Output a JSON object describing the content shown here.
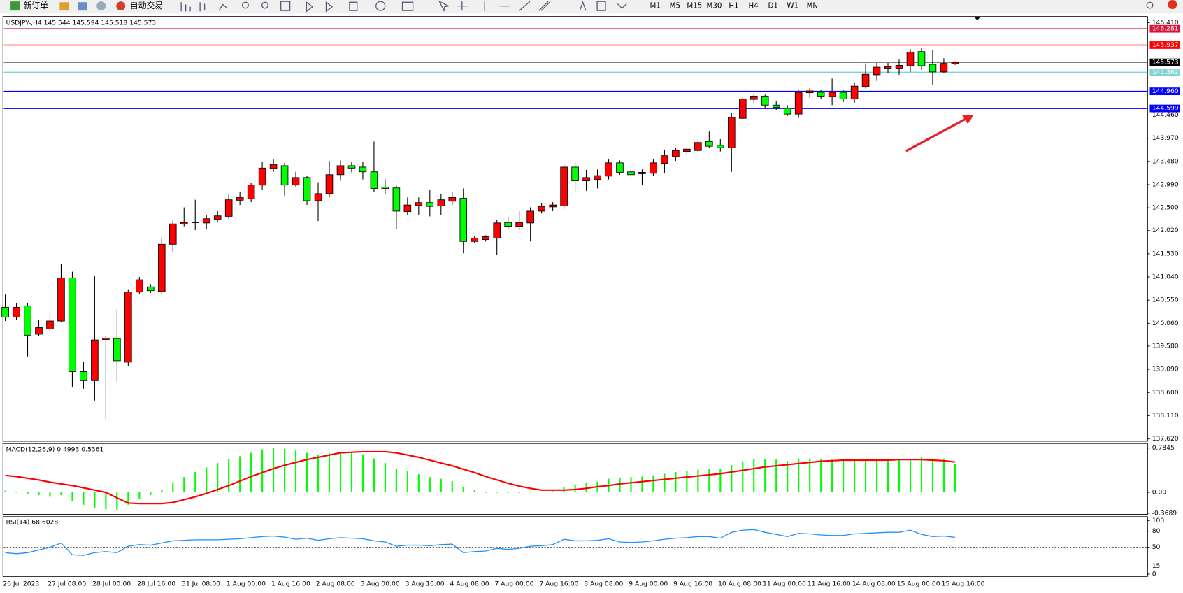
{
  "toolbar": {
    "new_order": "新订单",
    "auto_trading": "自动交易",
    "timeframes": [
      "M1",
      "M5",
      "M15",
      "M30",
      "H1",
      "H4",
      "D1",
      "W1",
      "MN"
    ]
  },
  "chart_data": [
    {
      "type": "candlestick",
      "symbol": "USDJPY-,H4",
      "up_color": "#ff0000",
      "down_color": "#00ff00",
      "categories": [
        "26 Jul 2023",
        null,
        null,
        null,
        "27 Jul 08:00",
        null,
        null,
        null,
        "28 Jul 00:00",
        null,
        null,
        null,
        "28 Jul 16:00",
        null,
        null,
        null,
        "31 Jul 08:00",
        null,
        null,
        null,
        "1 Aug 00:00",
        null,
        null,
        null,
        "1 Aug 16:00",
        null,
        null,
        null,
        "2 Aug 08:00",
        null,
        null,
        null,
        "3 Aug 00:00",
        null,
        null,
        null,
        "3 Aug 16:00",
        null,
        null,
        null,
        "4 Aug 08:00",
        null,
        null,
        null,
        "7 Aug 00:00",
        null,
        null,
        null,
        "7 Aug 16:00",
        null,
        null,
        null,
        "8 Aug 08:00",
        null,
        null,
        null,
        "9 Aug 00:00",
        null,
        null,
        null,
        "9 Aug 16:00",
        null,
        null,
        null,
        "10 Aug 08:00",
        null,
        null,
        null,
        "11 Aug 00:00",
        null,
        null,
        null,
        "11 Aug 16:00",
        null,
        null,
        null,
        "14 Aug 08:00",
        null,
        null,
        null,
        "15 Aug 00:00",
        null,
        null,
        null,
        "15 Aug 16:00",
        null
      ],
      "open": [
        140.4,
        140.19,
        140.43,
        139.83,
        139.94,
        140.11,
        141.02,
        139.04,
        138.85,
        139.72,
        139.74,
        139.24,
        140.72,
        140.83,
        140.73,
        141.73,
        142.16,
        142.19,
        142.18,
        142.26,
        142.32,
        142.66,
        142.69,
        142.98,
        143.33,
        143.39,
        142.98,
        143.14,
        142.65,
        142.8,
        143.2,
        143.39,
        143.36,
        143.26,
        142.94,
        142.92,
        142.42,
        142.55,
        142.61,
        142.54,
        142.64,
        142.7,
        141.79,
        141.83,
        141.86,
        142.19,
        142.11,
        142.18,
        142.43,
        142.52,
        142.54,
        143.36,
        143.07,
        143.1,
        143.17,
        143.45,
        143.26,
        143.22,
        143.23,
        143.44,
        143.58,
        143.69,
        143.71,
        143.9,
        143.82,
        143.77,
        144.39,
        144.79,
        144.86,
        144.67,
        144.6,
        144.48,
        144.93,
        144.94,
        144.85,
        144.94,
        144.8,
        145.06,
        145.31,
        145.45,
        145.45,
        145.5,
        145.8,
        145.53,
        145.37,
        145.544
      ],
      "high": [
        140.67,
        140.48,
        140.48,
        140.14,
        140.32,
        141.31,
        141.15,
        139.24,
        141.07,
        139.79,
        140.35,
        140.78,
        141.04,
        140.89,
        141.87,
        142.24,
        142.51,
        142.67,
        142.35,
        142.43,
        142.78,
        142.83,
        143.02,
        143.47,
        143.52,
        143.45,
        143.26,
        143.17,
        143.04,
        143.49,
        143.5,
        143.47,
        143.47,
        143.9,
        143.1,
        142.97,
        142.72,
        142.72,
        142.88,
        142.8,
        142.83,
        142.91,
        141.9,
        141.92,
        142.24,
        142.3,
        142.43,
        142.51,
        142.59,
        142.62,
        143.42,
        143.47,
        143.3,
        143.31,
        143.52,
        143.5,
        143.34,
        143.31,
        143.52,
        143.73,
        143.76,
        143.77,
        143.93,
        144.11,
        143.95,
        144.51,
        144.83,
        144.89,
        144.89,
        144.75,
        144.67,
        144.99,
        145.02,
        144.99,
        145.23,
        144.99,
        145.15,
        145.55,
        145.56,
        145.56,
        145.63,
        145.85,
        145.88,
        145.83,
        145.66,
        145.594
      ],
      "low": [
        140.11,
        140.14,
        139.36,
        139.79,
        139.87,
        140.08,
        138.72,
        138.68,
        138.43,
        138.04,
        138.83,
        139.15,
        140.67,
        140.7,
        140.67,
        141.57,
        142.11,
        142.03,
        142.06,
        142.21,
        142.27,
        142.56,
        142.62,
        142.88,
        143.26,
        142.75,
        142.94,
        142.56,
        142.22,
        142.72,
        143.07,
        143.25,
        143.1,
        142.83,
        142.78,
        142.06,
        142.35,
        142.35,
        142.32,
        142.35,
        142.56,
        141.54,
        141.76,
        141.79,
        141.51,
        142.06,
        142.03,
        141.79,
        142.38,
        142.43,
        142.46,
        142.85,
        142.86,
        142.91,
        143.1,
        143.2,
        143.1,
        142.99,
        143.18,
        143.23,
        143.49,
        143.63,
        143.68,
        143.76,
        143.69,
        143.26,
        144.38,
        144.72,
        144.6,
        144.57,
        144.44,
        144.4,
        144.83,
        144.8,
        144.67,
        144.73,
        144.72,
        145.02,
        145.18,
        145.35,
        145.31,
        145.37,
        145.42,
        145.1,
        145.35,
        145.518
      ],
      "close": [
        140.19,
        140.4,
        139.81,
        139.97,
        140.11,
        141.02,
        139.04,
        138.85,
        139.71,
        139.75,
        139.27,
        140.72,
        140.98,
        140.75,
        141.73,
        142.16,
        142.19,
        142.2,
        142.27,
        142.33,
        142.67,
        142.72,
        142.98,
        143.34,
        143.41,
        142.98,
        143.14,
        142.65,
        142.8,
        143.2,
        143.39,
        143.34,
        143.26,
        142.91,
        142.91,
        142.43,
        142.56,
        142.61,
        142.53,
        142.67,
        142.72,
        141.79,
        141.86,
        141.89,
        142.18,
        142.11,
        142.19,
        142.43,
        142.53,
        142.56,
        143.36,
        143.07,
        143.14,
        143.18,
        143.45,
        143.25,
        143.2,
        143.25,
        143.45,
        143.6,
        143.71,
        143.74,
        143.88,
        143.8,
        143.77,
        144.41,
        144.8,
        144.86,
        144.67,
        144.62,
        144.48,
        144.94,
        144.97,
        144.86,
        144.94,
        144.8,
        145.07,
        145.32,
        145.47,
        145.48,
        145.51,
        145.79,
        145.5,
        145.37,
        145.55,
        145.573
      ],
      "ylim": [
        137.572,
        146.538
      ],
      "yticks": [
        {
          "value": 146.41,
          "label": "146.410"
        },
        {
          "value": 144.46,
          "label": "144.460"
        },
        {
          "value": 143.97,
          "label": "143.970"
        },
        {
          "value": 143.48,
          "label": "143.480"
        },
        {
          "value": 142.99,
          "label": "142.990"
        },
        {
          "value": 142.5,
          "label": "142.500"
        },
        {
          "value": 142.02,
          "label": "142.020"
        },
        {
          "value": 141.53,
          "label": "141.530"
        },
        {
          "value": 141.04,
          "label": "141.040"
        },
        {
          "value": 140.55,
          "label": "140.550"
        },
        {
          "value": 140.06,
          "label": "140.060"
        },
        {
          "value": 139.58,
          "label": "139.580"
        },
        {
          "value": 139.09,
          "label": "139.090"
        },
        {
          "value": 138.6,
          "label": "138.600"
        },
        {
          "value": 138.11,
          "label": "138.110"
        },
        {
          "value": 137.62,
          "label": "137.620"
        }
      ],
      "levels": [
        {
          "value": 146.281,
          "color": "#dc143c"
        },
        {
          "value": 145.937,
          "color": "#ff0000"
        },
        {
          "value": 145.362,
          "color": "#7fd4d4"
        },
        {
          "value": 144.96,
          "label": "144.960",
          "color": "#0000ff"
        },
        {
          "value": 144.599,
          "color": "#0000ff"
        }
      ],
      "bid_color": "#000000"
    },
    {
      "type": "macd",
      "title": "MACD(12,26,9)",
      "color": "#00ff00",
      "signal_color": "#ff0000",
      "values": [
        0.03,
        0.0,
        -0.03,
        -0.05,
        -0.08,
        -0.05,
        -0.15,
        -0.22,
        -0.27,
        -0.3,
        -0.32,
        -0.22,
        -0.12,
        -0.05,
        0.05,
        0.18,
        0.27,
        0.36,
        0.44,
        0.52,
        0.59,
        0.64,
        0.7,
        0.76,
        0.78,
        0.77,
        0.74,
        0.7,
        0.67,
        0.69,
        0.71,
        0.7,
        0.67,
        0.6,
        0.52,
        0.42,
        0.37,
        0.32,
        0.27,
        0.24,
        0.2,
        0.1,
        0.04,
        0.0,
        0.0,
        -0.01,
        -0.01,
        0.0,
        0.01,
        0.02,
        0.1,
        0.14,
        0.17,
        0.19,
        0.24,
        0.26,
        0.27,
        0.28,
        0.3,
        0.33,
        0.36,
        0.38,
        0.4,
        0.42,
        0.42,
        0.48,
        0.55,
        0.59,
        0.59,
        0.58,
        0.55,
        0.59,
        0.59,
        0.58,
        0.58,
        0.56,
        0.57,
        0.58,
        0.58,
        0.58,
        0.58,
        0.59,
        0.62,
        0.6,
        0.59,
        0.4993
      ],
      "signal": [
        0.3,
        0.28,
        0.25,
        0.22,
        0.18,
        0.15,
        0.12,
        0.08,
        0.04,
        0.0,
        -0.1,
        -0.19,
        -0.2,
        -0.2,
        -0.2,
        -0.18,
        -0.13,
        -0.08,
        -0.02,
        0.05,
        0.12,
        0.2,
        0.28,
        0.35,
        0.42,
        0.48,
        0.53,
        0.58,
        0.62,
        0.66,
        0.7,
        0.71,
        0.72,
        0.72,
        0.72,
        0.7,
        0.66,
        0.62,
        0.57,
        0.52,
        0.47,
        0.41,
        0.35,
        0.28,
        0.22,
        0.16,
        0.11,
        0.07,
        0.04,
        0.04,
        0.04,
        0.05,
        0.07,
        0.1,
        0.12,
        0.15,
        0.17,
        0.19,
        0.21,
        0.23,
        0.25,
        0.27,
        0.29,
        0.31,
        0.33,
        0.36,
        0.39,
        0.42,
        0.45,
        0.47,
        0.49,
        0.51,
        0.53,
        0.55,
        0.56,
        0.57,
        0.57,
        0.57,
        0.57,
        0.57,
        0.58,
        0.58,
        0.58,
        0.57,
        0.56,
        0.5361
      ],
      "ylim": [
        -0.392,
        0.866
      ],
      "yticks": [
        0.7845,
        {
          "value": 0,
          "label": "0.00"
        },
        -0.3689
      ]
    },
    {
      "type": "rsi",
      "title": "RSI(14)",
      "color": "#1e90ff",
      "values": [
        40,
        38,
        40,
        45,
        50,
        58,
        36,
        35,
        40,
        42,
        40,
        52,
        55,
        54,
        58,
        62,
        63,
        64,
        64,
        64,
        65,
        66,
        68,
        70,
        71,
        69,
        65,
        67,
        63,
        66,
        68,
        67,
        66,
        62,
        60,
        52,
        54,
        54,
        53,
        55,
        56,
        40,
        42,
        43,
        48,
        46,
        48,
        52,
        53,
        55,
        65,
        62,
        62,
        63,
        66,
        60,
        59,
        60,
        62,
        65,
        67,
        68,
        70,
        70,
        67,
        78,
        82,
        83,
        78,
        74,
        70,
        76,
        75,
        73,
        72,
        72,
        75,
        76,
        77,
        78,
        78,
        82,
        74,
        70,
        71,
        68.6028
      ],
      "ylim": [
        -4.3,
        107.1
      ],
      "yticks": [
        100,
        80,
        50,
        15,
        0
      ],
      "levels": [
        80,
        50,
        15
      ]
    }
  ]
}
